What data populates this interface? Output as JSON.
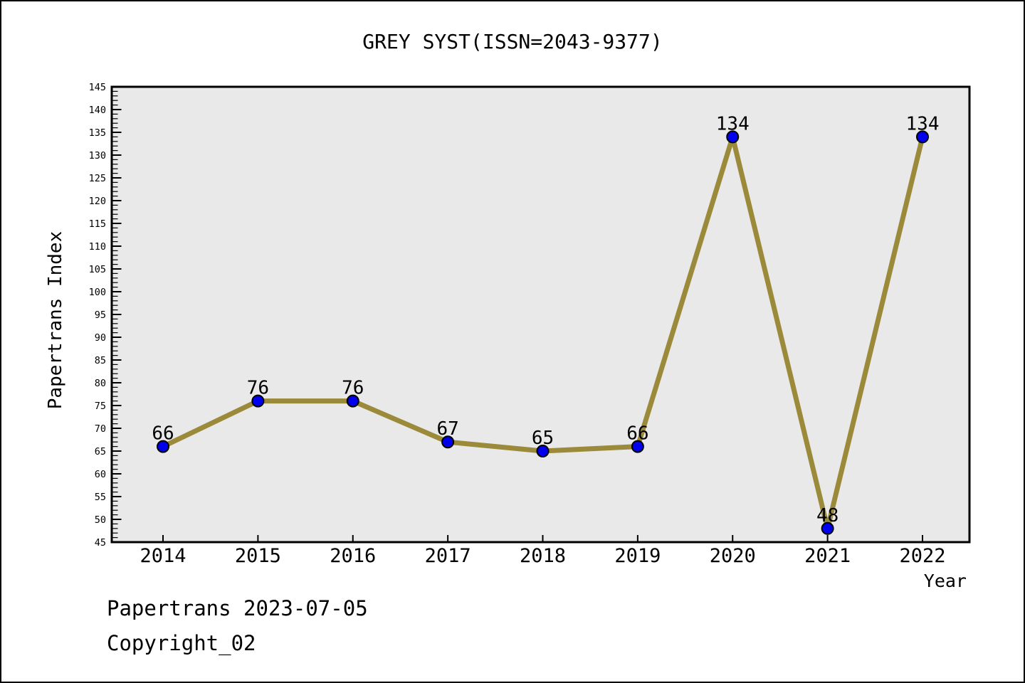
{
  "page": {
    "footer_line1": "Papertrans 2023-07-05",
    "footer_line2": "Copyright_02"
  },
  "chart_data": {
    "type": "line",
    "title": "GREY SYST(ISSN=2043-9377)",
    "xlabel": "Year",
    "ylabel": "Papertrans Index",
    "categories": [
      "2014",
      "2015",
      "2016",
      "2017",
      "2018",
      "2019",
      "2020",
      "2021",
      "2022"
    ],
    "values": [
      66,
      76,
      76,
      67,
      65,
      66,
      134,
      48,
      134
    ],
    "ylim": [
      45,
      145
    ],
    "y_major_step": 5,
    "y_minor_step": 1,
    "grid": false,
    "legend": "none",
    "point_labels_shown": true,
    "colors": {
      "line": "#9a8a3a",
      "marker": "#0000ee",
      "marker_edge": "#000000",
      "plot_bg": "#e9e9e9",
      "spine": "#000000",
      "text": "#000000"
    }
  }
}
